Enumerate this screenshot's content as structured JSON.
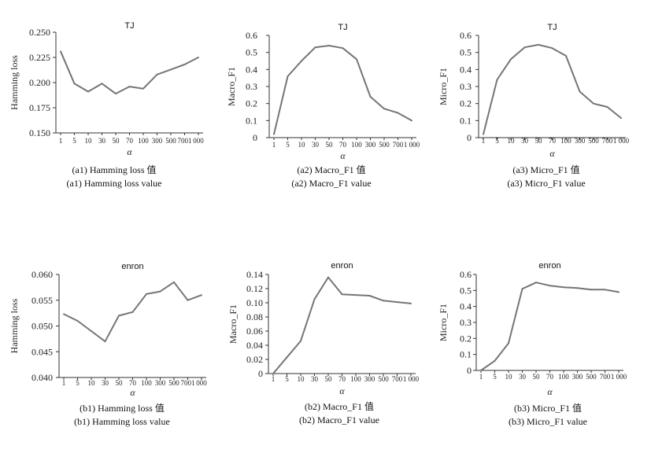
{
  "chart_data": [
    {
      "id": "a1",
      "type": "line",
      "title": "TJ",
      "xlabel": "α",
      "ylabel": "Hamming loss",
      "categories": [
        "1",
        "5",
        "10",
        "30",
        "50",
        "70",
        "100",
        "300",
        "500",
        "700",
        "1 000"
      ],
      "values": [
        0.231,
        0.199,
        0.191,
        0.199,
        0.189,
        0.196,
        0.194,
        0.208,
        0.213,
        0.218,
        0.225
      ],
      "ylim": [
        0.15,
        0.25
      ],
      "yticks": [
        "0.250",
        "0.225",
        "0.200",
        "0.175",
        "0.150"
      ],
      "xticks_display": [
        "1",
        "5",
        "10",
        "30",
        "50",
        "70",
        "100",
        "300",
        "500",
        "7001",
        "000"
      ],
      "grid": false,
      "caption_cn": "(a1) Hamming loss 值",
      "caption_en": "(a1) Hamming loss value"
    },
    {
      "id": "a2",
      "type": "line",
      "title": "TJ",
      "xlabel": "α",
      "ylabel": "Macro_F1",
      "categories": [
        "1",
        "5",
        "10",
        "30",
        "50",
        "70",
        "100",
        "300",
        "500",
        "700",
        "1 000"
      ],
      "values": [
        0.02,
        0.36,
        0.45,
        0.53,
        0.54,
        0.525,
        0.46,
        0.24,
        0.17,
        0.145,
        0.1
      ],
      "ylim": [
        0,
        0.6
      ],
      "yticks": [
        "0.6",
        "0.5",
        "0.4",
        "0.3",
        "0.2",
        "0.1",
        "0"
      ],
      "xticks_display": [
        "1",
        "5",
        "10",
        "30",
        "50",
        "70",
        "100",
        "300",
        "500",
        "700",
        "1 000"
      ],
      "grid": false,
      "caption_cn": "(a2) Macro_F1 值",
      "caption_en": "(a2) Macro_F1 value"
    },
    {
      "id": "a3",
      "type": "line",
      "title": "TJ",
      "xlabel": "α",
      "ylabel": "Micro_F1",
      "categories": [
        "1",
        "5",
        "10",
        "30",
        "50",
        "70",
        "100",
        "300",
        "500",
        "700",
        "1 000"
      ],
      "values": [
        0.02,
        0.34,
        0.46,
        0.53,
        0.545,
        0.525,
        0.48,
        0.27,
        0.2,
        0.18,
        0.115
      ],
      "ylim": [
        0,
        0.6
      ],
      "yticks": [
        "0.6",
        "0.5",
        "0.4",
        "0.3",
        "0.2",
        "0.1",
        "0"
      ],
      "xticks_display": [
        "1",
        "5",
        "10",
        "30",
        "50",
        "70",
        "100",
        "300",
        "500",
        "700",
        "1 000"
      ],
      "grid": false,
      "caption_cn": "(a3) Micro_F1 值",
      "caption_en": "(a3) Micro_F1 value"
    },
    {
      "id": "b1",
      "type": "line",
      "title": "enron",
      "xlabel": "α",
      "ylabel": "Hamming loss",
      "categories": [
        "1",
        "5",
        "10",
        "30",
        "50",
        "70",
        "100",
        "300",
        "500",
        "700",
        "1 000"
      ],
      "values": [
        0.0523,
        0.051,
        0.049,
        0.047,
        0.052,
        0.0527,
        0.0562,
        0.0567,
        0.0585,
        0.055,
        0.056
      ],
      "ylim": [
        0.04,
        0.06
      ],
      "yticks": [
        "0.060",
        "0.055",
        "0.050",
        "0.045",
        "0.040"
      ],
      "xticks_display": [
        "1",
        "5",
        "10",
        "30",
        "50",
        "70",
        "100",
        "300",
        "500",
        "7001",
        "000"
      ],
      "grid": false,
      "caption_cn": "(b1) Hamming loss 值",
      "caption_en": "(b1) Hamming loss value"
    },
    {
      "id": "b2",
      "type": "line",
      "title": "enron",
      "xlabel": "α",
      "ylabel": "Macro_F1",
      "categories": [
        "1",
        "5",
        "10",
        "30",
        "50",
        "70",
        "100",
        "300",
        "500",
        "700",
        "1 000"
      ],
      "values": [
        0.0,
        0.023,
        0.046,
        0.105,
        0.136,
        0.112,
        0.111,
        0.11,
        0.103,
        0.101,
        0.099
      ],
      "ylim": [
        0,
        0.14
      ],
      "yticks": [
        "0.14",
        "0.12",
        "0.10",
        "0.08",
        "0.06",
        "0.04",
        "0.02",
        "0"
      ],
      "xticks_display": [
        "1",
        "5",
        "10",
        "30",
        "50",
        "70",
        "100",
        "300",
        "500",
        "700",
        "1 000"
      ],
      "grid": false,
      "caption_cn": "(b2) Macro_F1 值",
      "caption_en": "(b2) Macro_F1 value"
    },
    {
      "id": "b3",
      "type": "line",
      "title": "enron",
      "xlabel": "α",
      "ylabel": "Micro_F1",
      "categories": [
        "1",
        "5",
        "10",
        "30",
        "50",
        "70",
        "100",
        "300",
        "500",
        "700",
        "1 000"
      ],
      "values": [
        0.0,
        0.06,
        0.17,
        0.51,
        0.55,
        0.53,
        0.52,
        0.515,
        0.505,
        0.505,
        0.49
      ],
      "ylim": [
        0,
        0.6
      ],
      "yticks": [
        "0.6",
        "0.5",
        "0.4",
        "0.3",
        "0.2",
        "0.1",
        "0"
      ],
      "xticks_display": [
        "1",
        "5",
        "10",
        "30",
        "50",
        "70",
        "100",
        "300",
        "500",
        "700",
        "1 000"
      ],
      "grid": false,
      "caption_cn": "(b3) Micro_F1 值",
      "caption_en": "(b3) Micro_F1 value"
    }
  ],
  "style": {
    "line_color": "#757575",
    "axis_color": "#333333"
  }
}
